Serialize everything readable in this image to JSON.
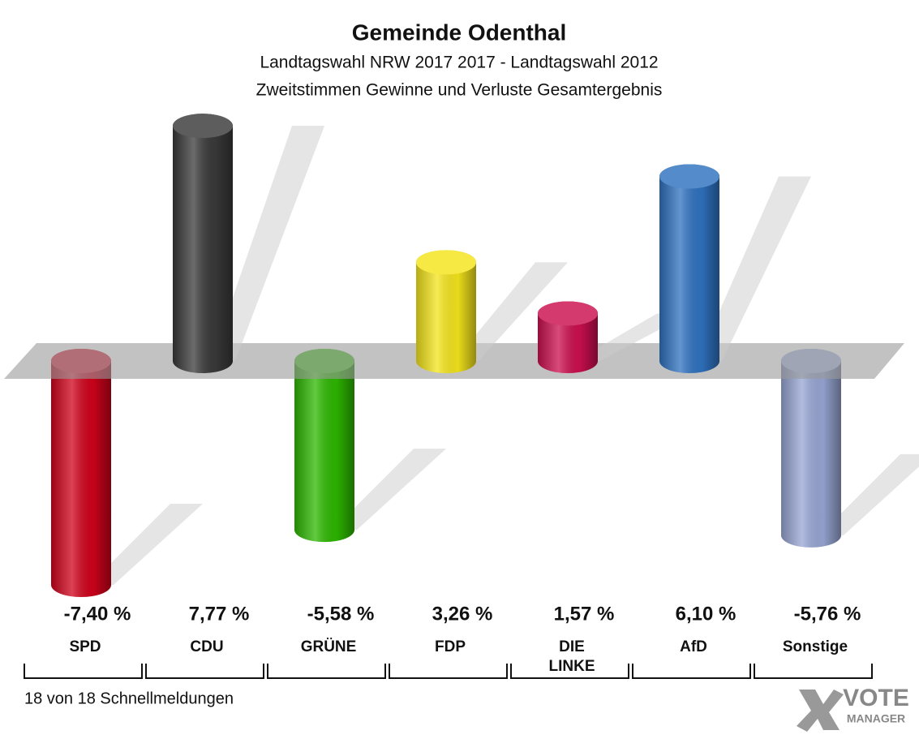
{
  "chart_data": {
    "type": "bar",
    "title": "Gemeinde Odenthal",
    "subtitle": [
      "Landtagswahl NRW 2017 2017 - Landtagswahl 2012",
      "Zweitstimmen Gewinne und Verluste Gesamtergebnis"
    ],
    "categories": [
      "SPD",
      "CDU",
      "GRÜNE",
      "FDP",
      "DIE\nLINKE",
      "AfD",
      "Sonstige"
    ],
    "series": [
      {
        "values": [
          -7.4,
          7.77,
          -5.58,
          3.26,
          1.57,
          6.1,
          -5.76
        ],
        "value_labels": [
          "-7,40 %",
          "7,77 %",
          "-5,58 %",
          "3,26 %",
          "1,57 %",
          "6,10 %",
          "-5,76 %"
        ],
        "colors": [
          "#d0021b",
          "#3a3a3a",
          "#2db800",
          "#f5e51c",
          "#cc0f4f",
          "#2f72c0",
          "#97a6d4"
        ]
      }
    ],
    "footnote": "18 von 18 Schnellmeldungen",
    "logo": [
      "VOTE",
      "MANAGER"
    ]
  }
}
